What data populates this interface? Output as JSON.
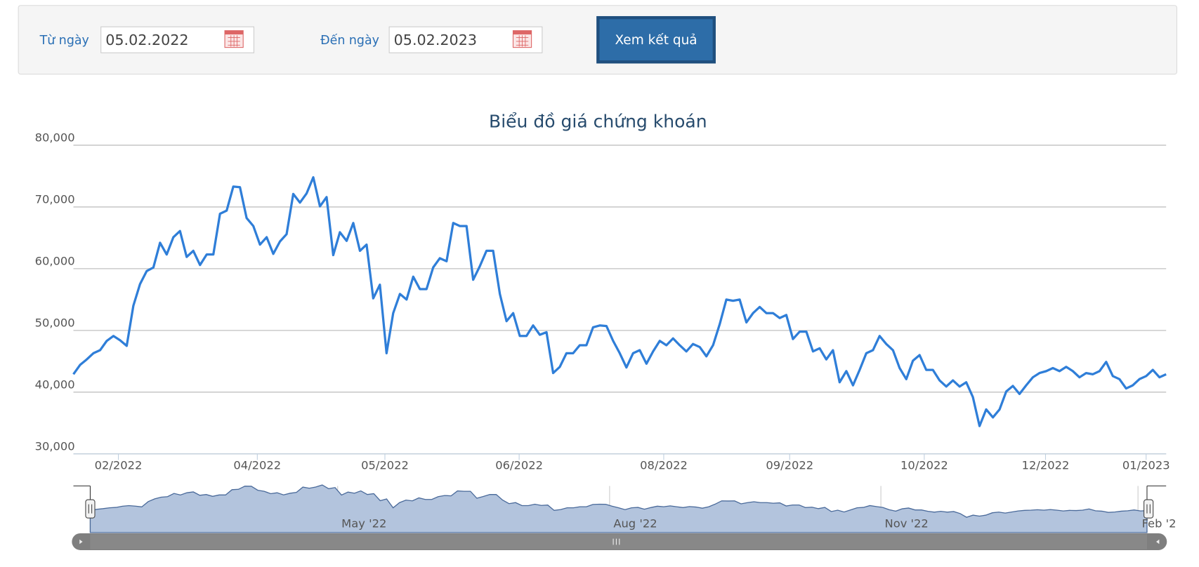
{
  "form": {
    "from_label": "Từ ngày",
    "from_value": "05.02.2022",
    "to_label": "Đến ngày",
    "to_value": "05.02.2023",
    "button": "Xem kết quả"
  },
  "chart_data": {
    "type": "line",
    "title": "Biểu đồ giá chứng khoán",
    "color": "#2f7ed8",
    "grid": true,
    "xlim": [
      0,
      164
    ],
    "xticks": [
      {
        "value": 6.75,
        "label": "02/2022"
      },
      {
        "value": 27.6,
        "label": "04/2022"
      },
      {
        "value": 46.75,
        "label": "05/2022"
      },
      {
        "value": 66.9,
        "label": "06/2022"
      },
      {
        "value": 88.6,
        "label": "08/2022"
      },
      {
        "value": 107.5,
        "label": "09/2022"
      },
      {
        "value": 127.7,
        "label": "10/2022"
      },
      {
        "value": 145.9,
        "label": "12/2022"
      },
      {
        "value": 161,
        "label": "01/2023"
      }
    ],
    "ylim": [
      30000,
      80000
    ],
    "yticks": [
      {
        "value": 30000,
        "label": "30,000"
      },
      {
        "value": 40000,
        "label": "40,000"
      },
      {
        "value": 50000,
        "label": "50,000"
      },
      {
        "value": 60000,
        "label": "60,000"
      },
      {
        "value": 70000,
        "label": "70,000"
      },
      {
        "value": 80000,
        "label": "80,000"
      }
    ],
    "navigator_ticks": [
      {
        "value": 38.4,
        "label": "May '22"
      },
      {
        "value": 80.6,
        "label": "Aug '22"
      },
      {
        "value": 122.7,
        "label": "Nov '22"
      },
      {
        "value": 162.6,
        "label": "Feb '2"
      }
    ],
    "values": [
      42900,
      44400,
      45300,
      46300,
      46800,
      48300,
      49100,
      48400,
      47500,
      54000,
      57500,
      59600,
      60200,
      64200,
      62300,
      65100,
      66100,
      61900,
      62900,
      60600,
      62300,
      62300,
      68900,
      69400,
      73300,
      73200,
      68200,
      66900,
      63900,
      65100,
      62400,
      64400,
      65600,
      72100,
      70700,
      72200,
      74800,
      70100,
      71600,
      62200,
      65900,
      64500,
      67400,
      62900,
      63900,
      55200,
      57400,
      46300,
      52800,
      55900,
      55000,
      58700,
      56700,
      56700,
      60200,
      61700,
      61200,
      67400,
      66900,
      66900,
      58200,
      60400,
      62900,
      62900,
      55900,
      51500,
      52800,
      49100,
      49100,
      50800,
      49300,
      49700,
      43100,
      44100,
      46300,
      46300,
      47600,
      47600,
      50500,
      50800,
      50700,
      48300,
      46300,
      44000,
      46300,
      46800,
      44600,
      46600,
      48300,
      47600,
      48700,
      47600,
      46600,
      47800,
      47300,
      45800,
      47600,
      51000,
      55000,
      54800,
      55000,
      51300,
      52800,
      53800,
      52800,
      52800,
      52000,
      52500,
      48600,
      49800,
      49800,
      46600,
      47100,
      45300,
      46800,
      41600,
      43400,
      41100,
      43600,
      46300,
      46800,
      49100,
      47800,
      46800,
      43900,
      42100,
      45100,
      46000,
      43600,
      43600,
      41900,
      40900,
      41900,
      40900,
      41600,
      39200,
      34500,
      37200,
      35900,
      37200,
      40100,
      41000,
      39700,
      41100,
      42400,
      43100,
      43400,
      43900,
      43400,
      44100,
      43400,
      42400,
      43100,
      42900,
      43400,
      44900,
      42600,
      42100,
      40600,
      41100,
      42100,
      42600,
      43600,
      42400,
      42900
    ]
  }
}
